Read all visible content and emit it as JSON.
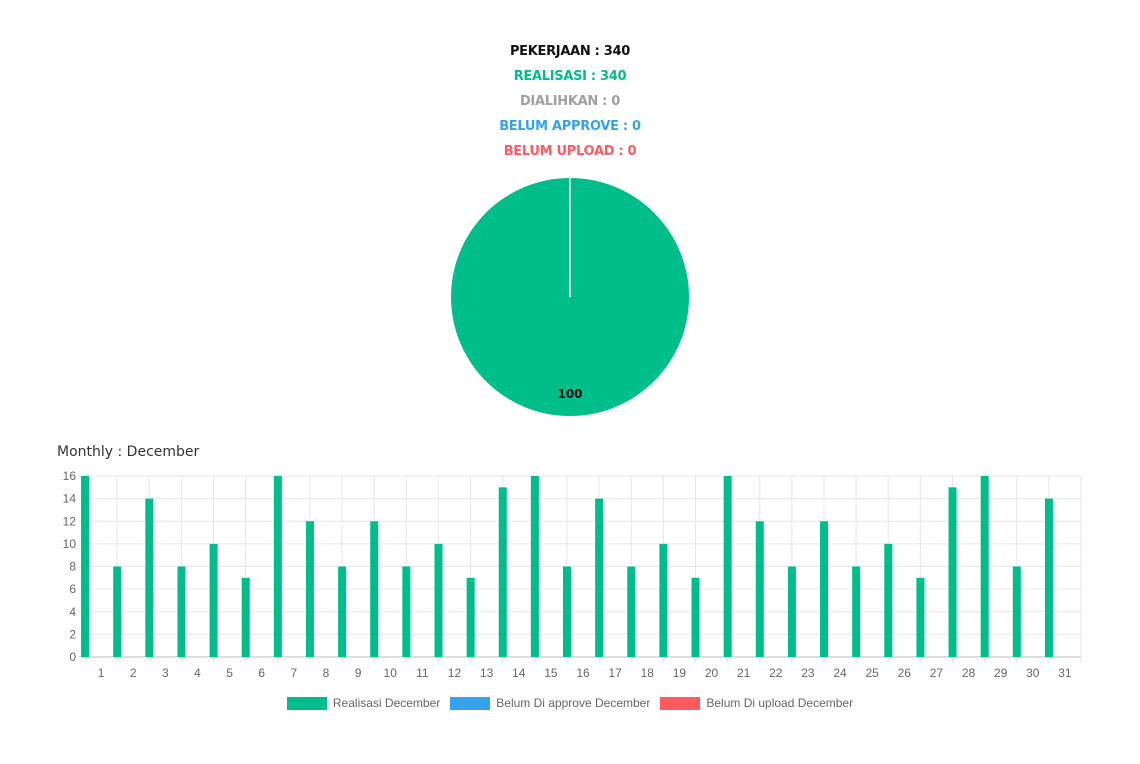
{
  "summary": {
    "pekerjaan": "PEKERJAAN : 340",
    "realisasi": "REALISASI : 340",
    "dialihkan": "DIALIHKAN : 0",
    "belum_approve": "BELUM APPROVE : 0",
    "belum_upload": "BELUM UPLOAD : 0"
  },
  "colors": {
    "green": "#00BE8A",
    "blue": "#36A2EB",
    "red": "#FF5A5F",
    "gray": "#A0A0A0",
    "black": "#111111"
  },
  "chart_data": [
    {
      "type": "pie",
      "slices": [
        {
          "value": 100,
          "color": "#00BE8A"
        },
        {
          "value": 0,
          "color": "#A0A0A0"
        },
        {
          "value": 0,
          "color": "#36A2EB"
        },
        {
          "value": 0,
          "color": "#FF5A5F"
        }
      ],
      "data_label": "100"
    },
    {
      "type": "bar",
      "title": "Monthly : December",
      "categories": [
        "1",
        "2",
        "3",
        "4",
        "5",
        "6",
        "7",
        "8",
        "9",
        "10",
        "11",
        "12",
        "13",
        "14",
        "15",
        "16",
        "17",
        "18",
        "19",
        "20",
        "21",
        "22",
        "23",
        "24",
        "25",
        "26",
        "27",
        "28",
        "29",
        "30",
        "31"
      ],
      "series": [
        {
          "name": "Realisasi December",
          "color": "#00BE8A",
          "values": [
            16,
            8,
            14,
            8,
            10,
            7,
            16,
            12,
            8,
            12,
            8,
            10,
            7,
            15,
            16,
            8,
            14,
            8,
            10,
            7,
            16,
            12,
            8,
            12,
            8,
            10,
            7,
            15,
            16,
            8,
            14
          ]
        },
        {
          "name": "Belum Di approve December",
          "color": "#36A2EB",
          "values": [
            0,
            0,
            0,
            0,
            0,
            0,
            0,
            0,
            0,
            0,
            0,
            0,
            0,
            0,
            0,
            0,
            0,
            0,
            0,
            0,
            0,
            0,
            0,
            0,
            0,
            0,
            0,
            0,
            0,
            0,
            0
          ]
        },
        {
          "name": "Belum Di upload December",
          "color": "#FF5A5F",
          "values": [
            0,
            0,
            0,
            0,
            0,
            0,
            0,
            0,
            0,
            0,
            0,
            0,
            0,
            0,
            0,
            0,
            0,
            0,
            0,
            0,
            0,
            0,
            0,
            0,
            0,
            0,
            0,
            0,
            0,
            0,
            0
          ]
        }
      ],
      "y_ticks": [
        "0",
        "2",
        "4",
        "6",
        "8",
        "10",
        "12",
        "14",
        "16"
      ],
      "ylim": [
        0,
        16
      ],
      "grid": true,
      "legend_position": "bottom"
    }
  ]
}
